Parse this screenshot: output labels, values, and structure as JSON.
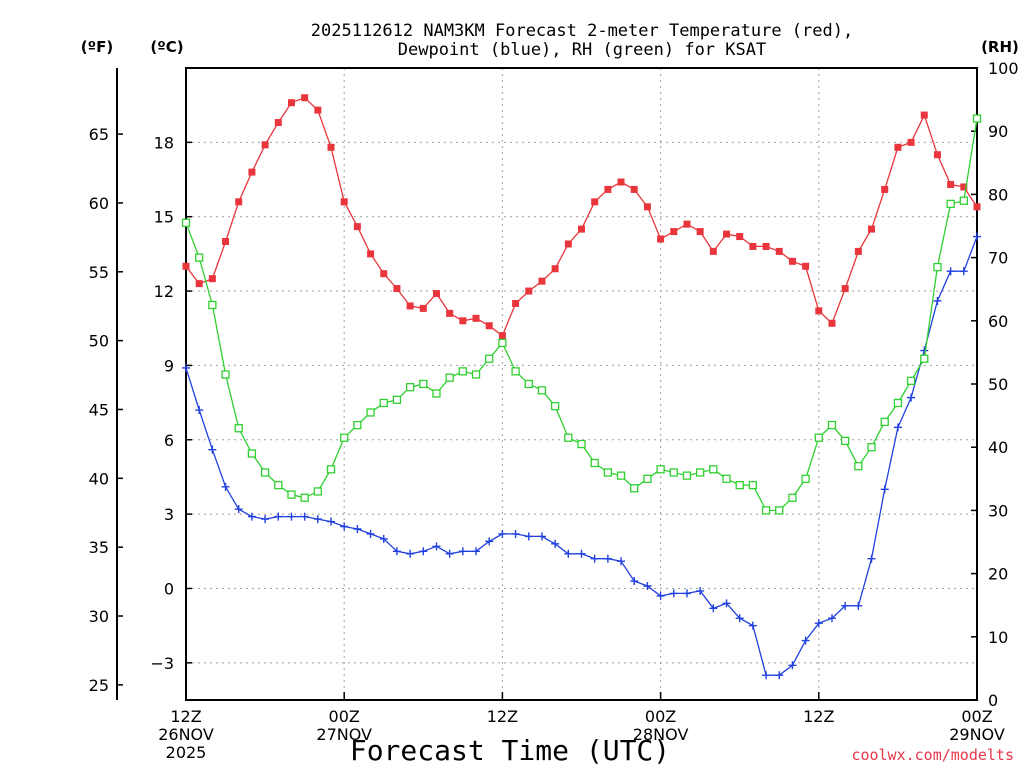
{
  "chart_data": {
    "type": "line",
    "title_line1": "2025112612 NAM3KM Forecast 2-meter Temperature (red),",
    "title_line2": "Dewpoint (blue), RH (green) for KSAT",
    "units": {
      "fahrenheit": "(ºF)",
      "celsius": "(ºC)",
      "rh": "(RH)"
    },
    "xlabel": "Forecast Time (UTC)",
    "credit": "coolwx.com/modelts",
    "x_range_hours": [
      0,
      60
    ],
    "celsius_range": [
      -4.5,
      21
    ],
    "rh_range": [
      0,
      100
    ],
    "fahrenheit_ticks": [
      "25",
      "30",
      "35",
      "40",
      "45",
      "50",
      "55",
      "60",
      "65"
    ],
    "celsius_ticks": [
      "-3",
      "0",
      "3",
      "6",
      "9",
      "12",
      "15",
      "18"
    ],
    "rh_ticks": [
      "0",
      "10",
      "20",
      "30",
      "40",
      "50",
      "60",
      "70",
      "80",
      "90",
      "100"
    ],
    "x_ticks": [
      {
        "hour": 0,
        "lines": [
          "12Z",
          "26NOV",
          "2025"
        ]
      },
      {
        "hour": 12,
        "lines": [
          "00Z",
          "27NOV"
        ]
      },
      {
        "hour": 24,
        "lines": [
          "12Z"
        ]
      },
      {
        "hour": 36,
        "lines": [
          "00Z",
          "28NOV"
        ]
      },
      {
        "hour": 48,
        "lines": [
          "12Z"
        ]
      },
      {
        "hour": 60,
        "lines": [
          "00Z",
          "29NOV"
        ]
      }
    ],
    "series": [
      {
        "name": "Temperature (°C)",
        "axis": "celsius",
        "color": "#e8363c",
        "marker": "filled-square",
        "values": [
          13.0,
          12.3,
          12.5,
          14.0,
          15.6,
          16.8,
          17.9,
          18.8,
          19.6,
          19.8,
          19.3,
          17.8,
          15.6,
          14.6,
          13.5,
          12.7,
          12.1,
          11.4,
          11.3,
          11.9,
          11.1,
          10.8,
          10.9,
          10.6,
          10.2,
          11.5,
          12.0,
          12.4,
          12.9,
          13.9,
          14.5,
          15.6,
          16.1,
          16.4,
          16.1,
          15.4,
          14.1,
          14.4,
          14.7,
          14.4,
          13.6,
          14.3,
          14.2,
          13.8,
          13.8,
          13.6,
          13.2,
          13.0,
          11.2,
          10.7,
          12.1,
          13.6,
          14.5,
          16.1,
          17.8,
          18.0,
          19.1,
          17.5,
          16.3,
          16.2,
          15.4
        ]
      },
      {
        "name": "Dewpoint (°C)",
        "axis": "celsius",
        "color": "#2040e0",
        "marker": "plus",
        "values": [
          8.9,
          7.2,
          5.6,
          4.1,
          3.2,
          2.9,
          2.8,
          2.9,
          2.9,
          2.9,
          2.8,
          2.7,
          2.5,
          2.4,
          2.2,
          2.0,
          1.5,
          1.4,
          1.5,
          1.7,
          1.4,
          1.5,
          1.5,
          1.9,
          2.2,
          2.2,
          2.1,
          2.1,
          1.8,
          1.4,
          1.4,
          1.2,
          1.2,
          1.1,
          0.3,
          0.1,
          -0.3,
          -0.2,
          -0.2,
          -0.1,
          -0.8,
          -0.6,
          -1.2,
          -1.5,
          -3.5,
          -3.5,
          -3.1,
          -2.1,
          -1.4,
          -1.2,
          -0.7,
          -0.7,
          1.2,
          4.0,
          6.5,
          7.7,
          9.6,
          11.6,
          12.8,
          12.8,
          14.2
        ]
      },
      {
        "name": "RH (%)",
        "axis": "rh",
        "color": "#30d030",
        "marker": "open-square",
        "values": [
          75.5,
          70.0,
          62.5,
          51.5,
          43.0,
          39.0,
          36.0,
          34.0,
          32.5,
          32.0,
          33.0,
          36.5,
          41.5,
          43.5,
          45.5,
          47.0,
          47.5,
          49.5,
          50.0,
          48.5,
          51.0,
          52.0,
          51.5,
          54.0,
          56.5,
          52.0,
          50.0,
          49.0,
          46.5,
          41.5,
          40.5,
          37.5,
          36.0,
          35.5,
          33.5,
          35.0,
          36.5,
          36.0,
          35.5,
          36.0,
          36.5,
          35.0,
          34.0,
          34.0,
          30.0,
          30.0,
          32.0,
          35.0,
          41.5,
          43.5,
          41.0,
          37.0,
          40.0,
          44.0,
          47.0,
          50.5,
          54.0,
          68.5,
          78.5,
          79.0,
          92.0
        ]
      }
    ]
  }
}
